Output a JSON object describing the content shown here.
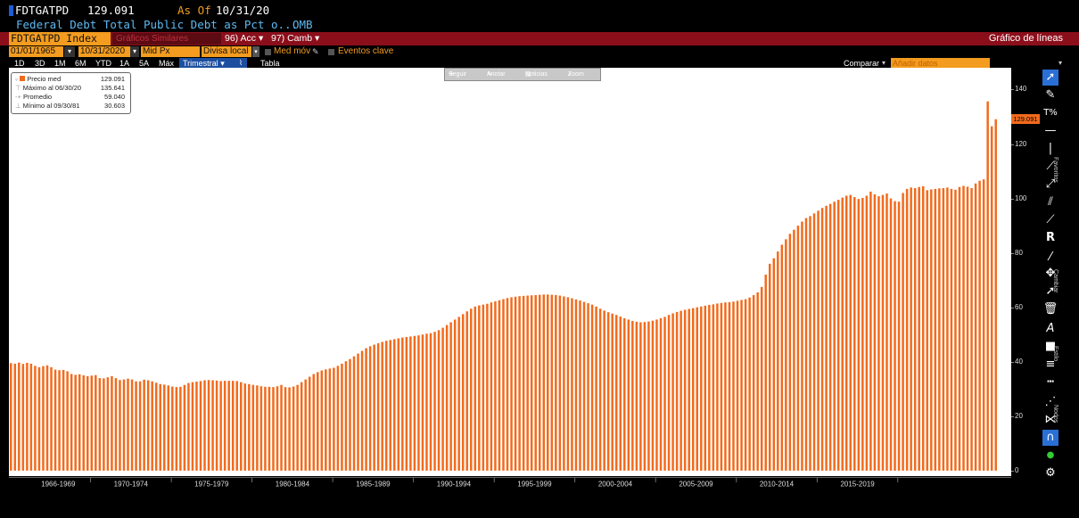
{
  "header": {
    "ticker": "FDTGATPD",
    "last_value": "129.091",
    "asof_label": "As Of",
    "asof_date": "10/31/20",
    "description": "Federal Debt Total Public Debt as Pct o...",
    "source": "OMB"
  },
  "security_bar": {
    "security": "FDTGATPD Index",
    "related_label": "Gráficos Similares",
    "actions_label": "96) Acc",
    "edit_label": "97) Camb",
    "chart_type_label": "Gráfico de líneas"
  },
  "range_bar": {
    "start_date": "01/01/1965",
    "end_date": "10/31/2020",
    "price_field": "Mid Px",
    "currency": "Divisa local",
    "moving_avg": "Med móv",
    "key_events": "Eventos clave"
  },
  "period_bar": {
    "periods": [
      "1D",
      "3D",
      "1M",
      "6M",
      "YTD",
      "1A",
      "5A",
      "Máx"
    ],
    "frequency": "Trimestral",
    "table_label": "Tabla",
    "compare_label": "Comparar",
    "compare_placeholder": "Añadir datos"
  },
  "mini_toolbar": {
    "track": "Seguir",
    "annotate": "Anotar",
    "news": "Noticias",
    "zoom": "Zoom"
  },
  "legend": {
    "series_name": "Precio med",
    "series_value": "129.091",
    "high_label": "Máximo al 06/30/20",
    "high_value": "135.641",
    "avg_label": "Promedio",
    "avg_value": "59.040",
    "low_label": "Mínimo al 09/30/81",
    "low_value": "30.603"
  },
  "side_labels": {
    "favorites": "Favoritos",
    "change": "Cambiar",
    "style": "Estilo",
    "nodes": "Nodos"
  },
  "colors": {
    "series": "#f26b1d",
    "background": "#000000",
    "plot": "#ffffff",
    "accent_bar": "#8b0f1b",
    "field": "#f39c1f"
  },
  "chart_data": {
    "type": "bar",
    "title": "",
    "xlabel": "",
    "ylabel": "",
    "ylim": [
      -2,
      148
    ],
    "yticks": [
      0,
      20,
      40,
      60,
      80,
      100,
      120,
      140
    ],
    "last_value_tag": "129.091",
    "x_range_labels": [
      "1966-1969",
      "1970-1974",
      "1975-1979",
      "1980-1984",
      "1985-1989",
      "1990-1994",
      "1995-1999",
      "2000-2004",
      "2005-2009",
      "2010-2014",
      "2015-2019"
    ],
    "start": "1965-Q1",
    "frequency": "quarterly",
    "series": [
      {
        "values": [
          39.5,
          39.3,
          39.7,
          39.2,
          39.6,
          39.3,
          38.5,
          38.0,
          38.4,
          38.7,
          38.0,
          37.1,
          36.9,
          37.0,
          36.5,
          35.5,
          35.2,
          35.4,
          35.0,
          34.7,
          34.9,
          35.1,
          34.0,
          33.9,
          34.3,
          34.7,
          34.0,
          33.3,
          33.5,
          33.8,
          33.5,
          32.8,
          32.8,
          33.4,
          33.2,
          32.8,
          32.3,
          31.8,
          31.6,
          31.3,
          30.9,
          30.7,
          30.8,
          31.5,
          32.2,
          32.5,
          32.7,
          32.9,
          33.2,
          33.3,
          33.2,
          33.1,
          32.9,
          33.0,
          33.0,
          33.0,
          32.9,
          32.5,
          32.0,
          31.8,
          31.5,
          31.3,
          31.0,
          30.8,
          30.8,
          30.7,
          31.0,
          31.5,
          30.7,
          30.6,
          30.9,
          31.5,
          32.5,
          33.5,
          34.5,
          35.5,
          36.2,
          36.8,
          37.2,
          37.5,
          37.8,
          38.5,
          39.3,
          40.2,
          41.0,
          42.0,
          43.0,
          44.0,
          45.0,
          45.7,
          46.3,
          46.8,
          47.3,
          47.7,
          48.0,
          48.3,
          48.6,
          48.9,
          49.1,
          49.3,
          49.5,
          49.7,
          50.0,
          50.3,
          50.5,
          51.0,
          51.6,
          52.5,
          53.5,
          54.5,
          55.5,
          56.5,
          57.5,
          58.5,
          59.5,
          60.3,
          60.7,
          61.0,
          61.3,
          61.8,
          62.2,
          62.6,
          63.0,
          63.4,
          63.7,
          63.9,
          64.1,
          64.2,
          64.3,
          64.4,
          64.5,
          64.6,
          64.7,
          64.7,
          64.6,
          64.5,
          64.3,
          64.0,
          63.7,
          63.3,
          62.9,
          62.5,
          62.0,
          61.5,
          61.0,
          60.3,
          59.5,
          58.8,
          58.2,
          57.7,
          57.2,
          56.6,
          56.0,
          55.5,
          55.0,
          54.7,
          54.5,
          54.6,
          54.8,
          55.1,
          55.5,
          56.0,
          56.5,
          57.2,
          57.8,
          58.3,
          58.7,
          59.1,
          59.4,
          59.7,
          60.0,
          60.3,
          60.6,
          60.9,
          61.1,
          61.4,
          61.6,
          61.8,
          61.9,
          62.1,
          62.4,
          62.7,
          63.0,
          63.6,
          64.5,
          65.5,
          67.5,
          72.0,
          76.0,
          78.0,
          80.5,
          83.0,
          85.0,
          87.0,
          88.5,
          90.0,
          91.5,
          92.8,
          93.5,
          94.5,
          95.5,
          96.5,
          97.3,
          98.0,
          98.8,
          99.5,
          100.3,
          101.0,
          101.3,
          100.5,
          99.8,
          100.2,
          101.0,
          102.5,
          101.5,
          100.8,
          101.3,
          101.8,
          100.0,
          99.0,
          98.8,
          102.0,
          103.5,
          104.0,
          103.8,
          104.2,
          104.5,
          103.0,
          103.3,
          103.5,
          103.7,
          103.8,
          104.0,
          103.5,
          103.2,
          104.2,
          104.6,
          104.3,
          103.8,
          105.5,
          106.5,
          107.0,
          135.641,
          126.5,
          129.091
        ]
      }
    ]
  }
}
